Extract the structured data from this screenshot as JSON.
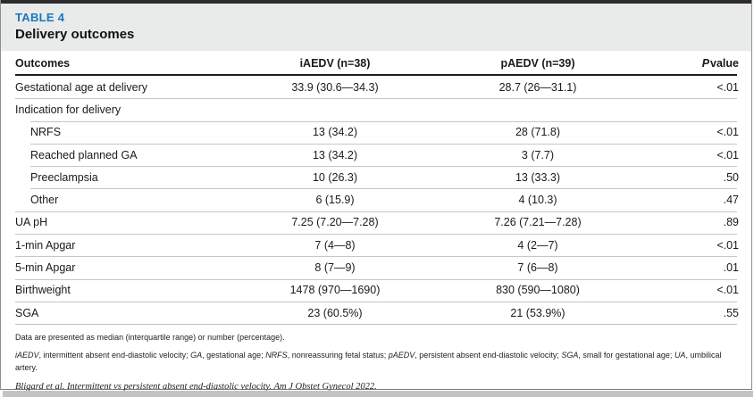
{
  "colors": {
    "accent_blue": "#1878be",
    "header_band_gray": "#e9eaea",
    "top_bar": "#2c2c2c",
    "body_text": "#1a1a1a",
    "light_rule": "#c7c7c7",
    "heavy_rule": "#1d1d1d"
  },
  "table": {
    "tag": "TABLE 4",
    "title": "Delivery outcomes",
    "columns": {
      "outcomes": "Outcomes",
      "iaedv": "iAEDV (n=38)",
      "paedv": "pAEDV (n=39)",
      "p_italic": "P",
      "p_rest": "value"
    },
    "rows": [
      {
        "label": "Gestational age at delivery",
        "indent": false,
        "iaedv": "33.9 (30.6—34.3)",
        "paedv": "28.7 (26—31.1)",
        "p": "<.01"
      },
      {
        "label": "Indication for delivery",
        "indent": false,
        "iaedv": "",
        "paedv": "",
        "p": ""
      },
      {
        "label": "NRFS",
        "indent": true,
        "iaedv": "13 (34.2)",
        "paedv": "28 (71.8)",
        "p": "<.01"
      },
      {
        "label": "Reached planned GA",
        "indent": true,
        "iaedv": "13 (34.2)",
        "paedv": "3 (7.7)",
        "p": "<.01"
      },
      {
        "label": "Preeclampsia",
        "indent": true,
        "iaedv": "10 (26.3)",
        "paedv": "13 (33.3)",
        "p": ".50"
      },
      {
        "label": "Other",
        "indent": true,
        "iaedv": "6 (15.9)",
        "paedv": "4 (10.3)",
        "p": ".47"
      },
      {
        "label": "UA pH",
        "indent": false,
        "iaedv": "7.25 (7.20—7.28)",
        "paedv": "7.26 (7.21—7.28)",
        "p": ".89"
      },
      {
        "label": "1-min Apgar",
        "indent": false,
        "iaedv": "7 (4—8)",
        "paedv": "4 (2—7)",
        "p": "<.01"
      },
      {
        "label": "5-min Apgar",
        "indent": false,
        "iaedv": "8 (7—9)",
        "paedv": "7 (6—8)",
        "p": ".01"
      },
      {
        "label": "Birthweight",
        "indent": false,
        "iaedv": "1478 (970—1690)",
        "paedv": "830 (590—1080)",
        "p": "<.01"
      },
      {
        "label": "SGA",
        "indent": false,
        "iaedv": "23 (60.5%)",
        "paedv": "21 (53.9%)",
        "p": ".55"
      }
    ],
    "footnotes": {
      "presentation": "Data are presented as median (interquartile range) or number (percentage).",
      "abbreviations": [
        "iAEDV",
        ", intermittent absent end-diastolic velocity; ",
        "GA",
        ", gestational age; ",
        "NRFS",
        ", nonreassuring fetal status; ",
        "pAEDV",
        ", persistent absent end-diastolic velocity; ",
        "SGA",
        ", small for gestational age; ",
        "UA",
        ", umbilical artery."
      ],
      "citation": "Bligard et al. Intermittent vs persistent absent end-diastolic velocity. Am J Obstet Gynecol 2022."
    }
  }
}
